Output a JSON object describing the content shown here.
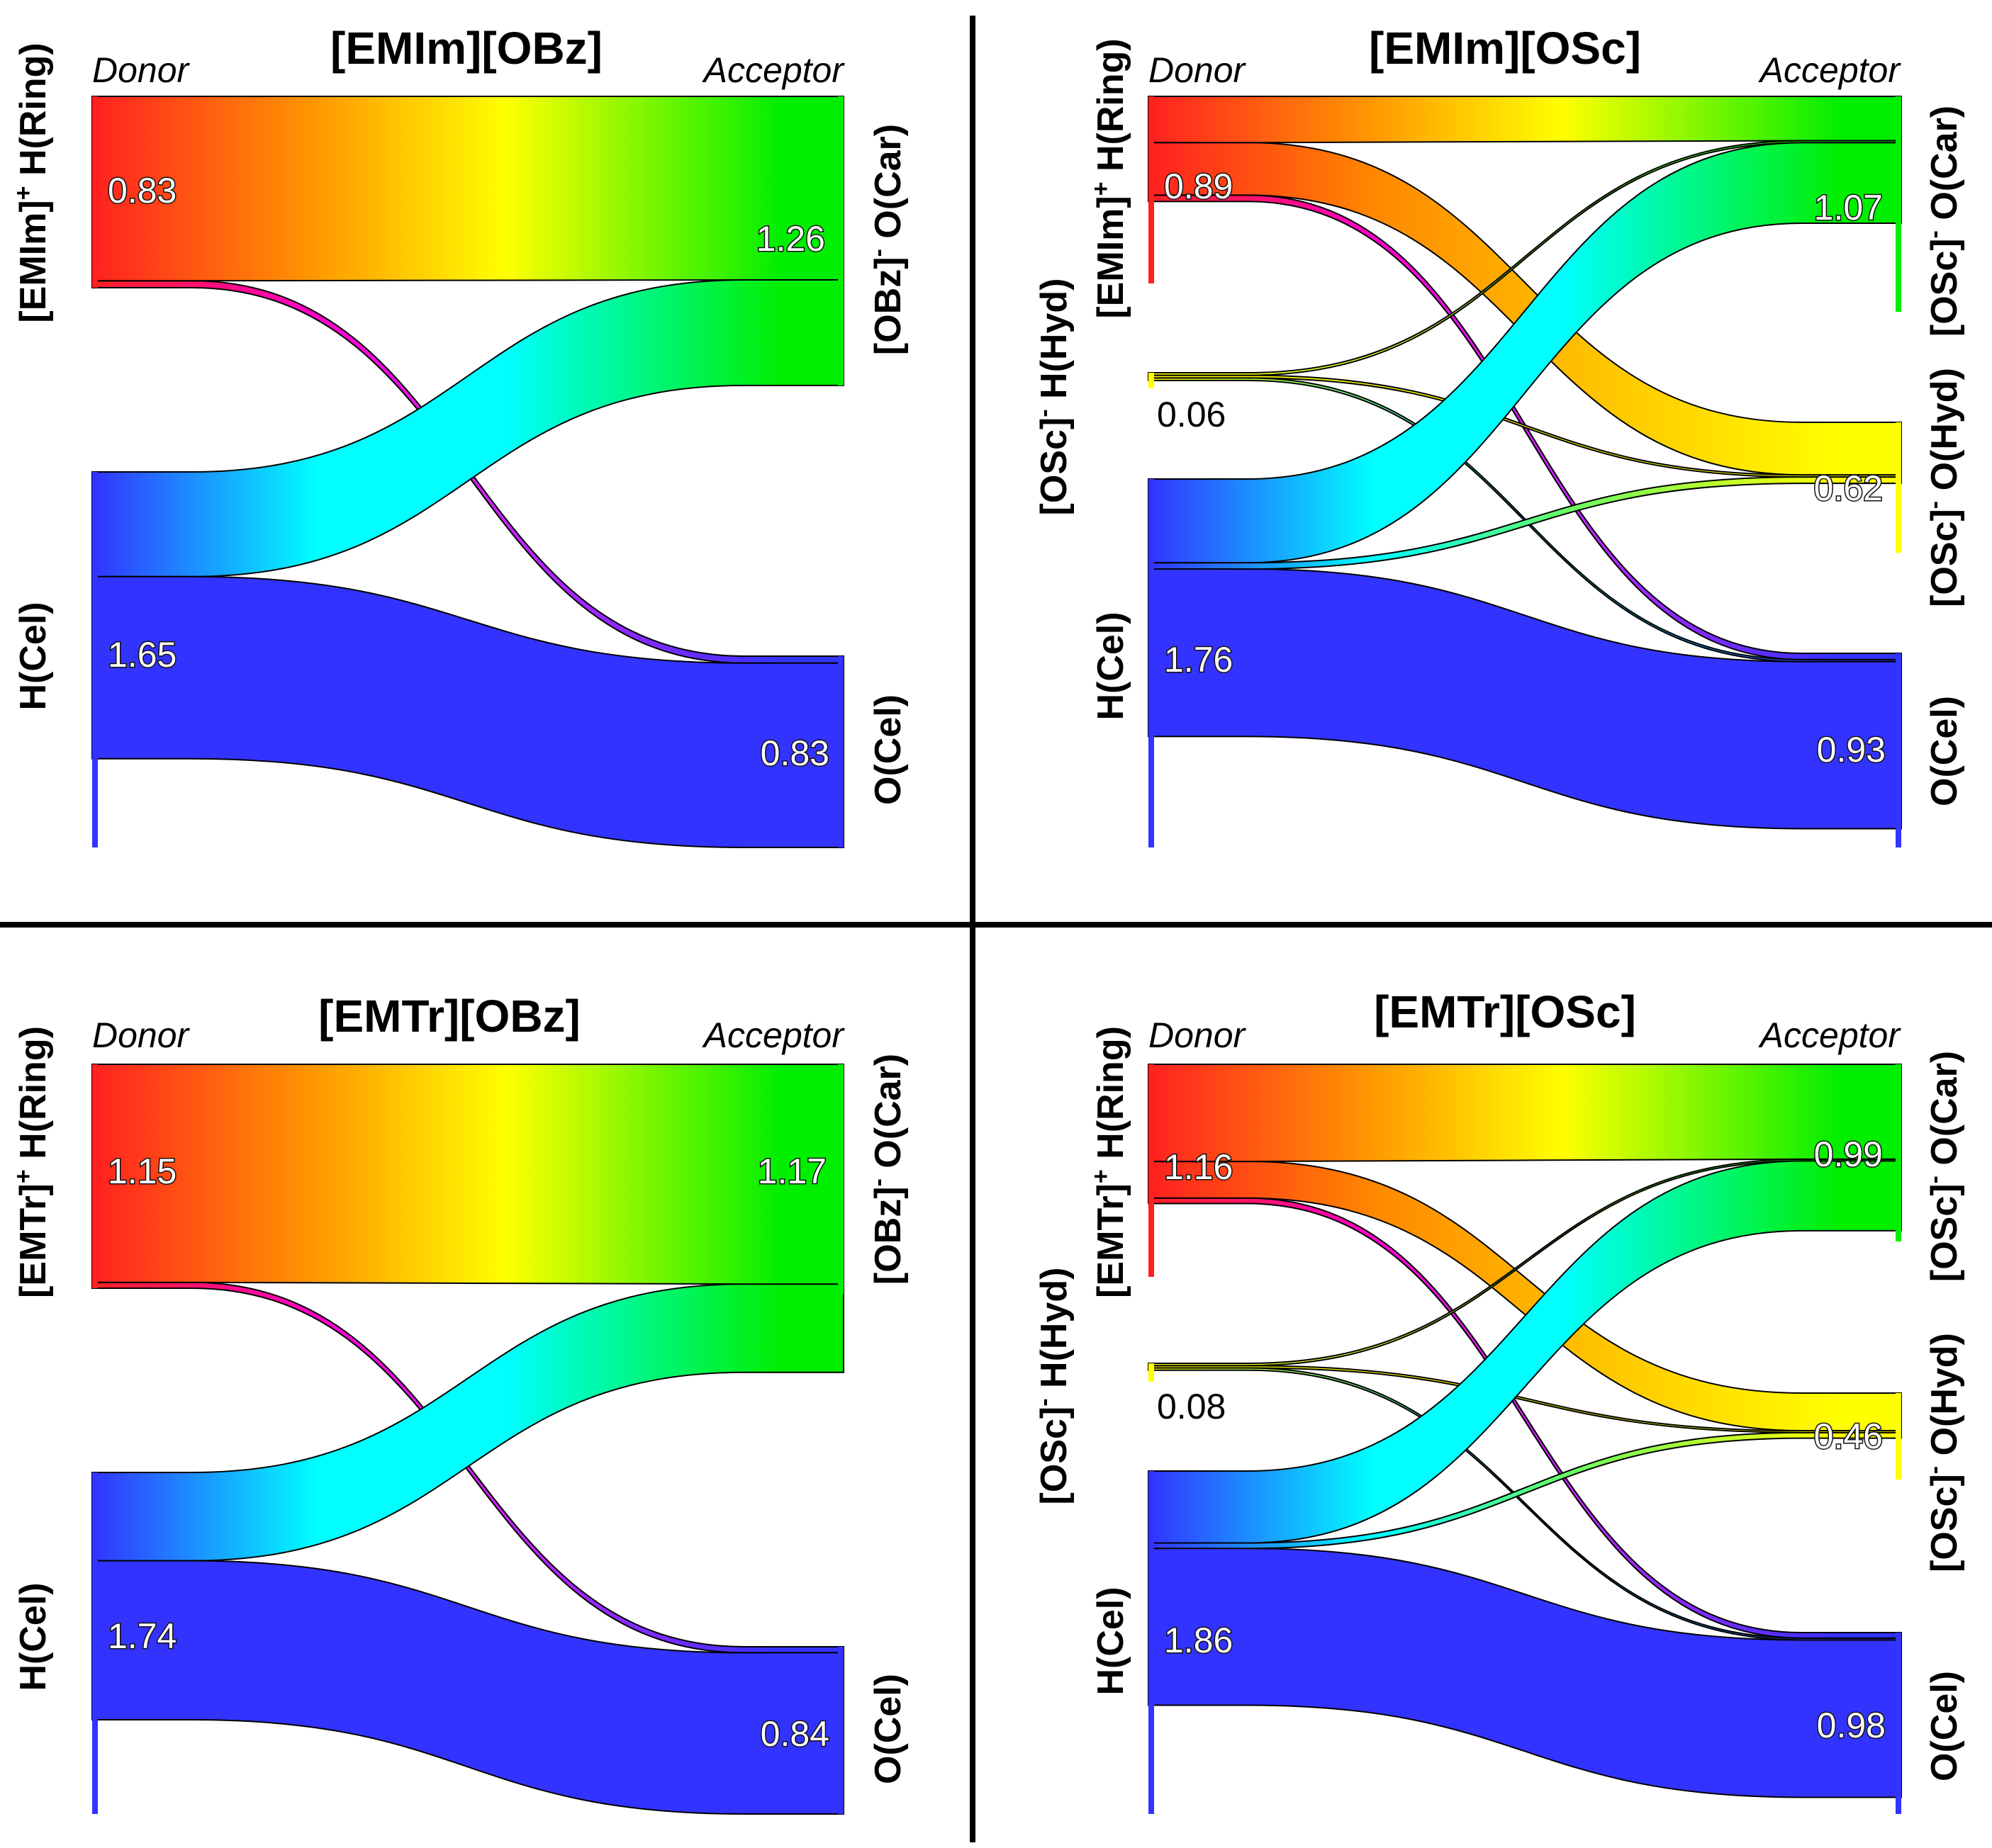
{
  "figure_kind": "sankey-hydrogen-bond-flows",
  "role_labels": {
    "donor": "Donor",
    "acceptor": "Acceptor"
  },
  "colors": {
    "ring_h": "#ff2020",
    "o_car": "#00ee00",
    "hyd_h": "#ffff00",
    "o_hyd": "#ffff00",
    "h_cel": "#3333ff",
    "o_cel": "#3333ff",
    "cyan": "#00ffff",
    "magenta": "#ff00cc",
    "orange": "#ff8800",
    "divider": "#000000"
  },
  "chart_data": [
    {
      "type": "sankey",
      "title": "[EMIm][OBz]",
      "donors": [
        {
          "label_main": "[EMIm]",
          "label_sup": "+",
          "label_rest": " H(Ring)",
          "value": 0.83,
          "color": "#ff2020"
        },
        {
          "label_main": "H(Cel)",
          "label_sup": "",
          "label_rest": "",
          "value": 1.65,
          "color": "#3333ff"
        }
      ],
      "acceptors": [
        {
          "label_main": "[OBz]",
          "label_sup": "-",
          "label_rest": " O(Car)",
          "value": 1.26,
          "color": "#00ee00"
        },
        {
          "label_main": "O(Cel)",
          "label_sup": "",
          "label_rest": "",
          "value": 0.83,
          "color": "#3333ff"
        }
      ],
      "links": [
        {
          "from": 0,
          "to": 0,
          "value": 0.8
        },
        {
          "from": 0,
          "to": 1,
          "value": 0.03
        },
        {
          "from": 1,
          "to": 0,
          "value": 0.46
        },
        {
          "from": 1,
          "to": 1,
          "value": 0.8
        }
      ]
    },
    {
      "type": "sankey",
      "title": "[EMIm][OSc]",
      "donors": [
        {
          "label_main": "[EMIm]",
          "label_sup": "+",
          "label_rest": " H(Ring)",
          "value": 0.89,
          "color": "#ff2020"
        },
        {
          "label_main": "[OSc]",
          "label_sup": "-",
          "label_rest": " H(Hyd)",
          "value": 0.06,
          "color": "#ffff00"
        },
        {
          "label_main": "H(Cel)",
          "label_sup": "",
          "label_rest": "",
          "value": 1.76,
          "color": "#3333ff"
        }
      ],
      "acceptors": [
        {
          "label_main": "[OSc]",
          "label_sup": "-",
          "label_rest": " O(Car)",
          "value": 1.07,
          "color": "#00ee00"
        },
        {
          "label_main": "[OSc]",
          "label_sup": "-",
          "label_rest": " O(Hyd)",
          "value": 0.62,
          "color": "#ffff00"
        },
        {
          "label_main": "O(Cel)",
          "label_sup": "",
          "label_rest": "",
          "value": 0.93,
          "color": "#3333ff"
        }
      ],
      "links": [
        {
          "from": 0,
          "to": 0,
          "value": 0.22
        },
        {
          "from": 0,
          "to": 1,
          "value": 0.25
        },
        {
          "from": 0,
          "to": 2,
          "value": 0.03
        },
        {
          "from": 1,
          "to": 0,
          "value": 0.01
        },
        {
          "from": 1,
          "to": 1,
          "value": 0.01
        },
        {
          "from": 1,
          "to": 2,
          "value": 0.01
        },
        {
          "from": 2,
          "to": 0,
          "value": 0.4
        },
        {
          "from": 2,
          "to": 1,
          "value": 0.03
        },
        {
          "from": 2,
          "to": 2,
          "value": 0.8
        }
      ]
    },
    {
      "type": "sankey",
      "title": "[EMTr][OBz]",
      "donors": [
        {
          "label_main": "[EMTr]",
          "label_sup": "+",
          "label_rest": " H(Ring)",
          "value": 1.15,
          "color": "#ff2020"
        },
        {
          "label_main": "H(Cel)",
          "label_sup": "",
          "label_rest": "",
          "value": 1.74,
          "color": "#3333ff"
        }
      ],
      "acceptors": [
        {
          "label_main": "[OBz]",
          "label_sup": "-",
          "label_rest": " O(Car)",
          "value": 1.17,
          "color": "#00ee00"
        },
        {
          "label_main": "O(Cel)",
          "label_sup": "",
          "label_rest": "",
          "value": 0.84,
          "color": "#3333ff"
        }
      ],
      "links": [
        {
          "from": 0,
          "to": 0,
          "value": 1.12
        },
        {
          "from": 0,
          "to": 1,
          "value": 0.03
        },
        {
          "from": 1,
          "to": 0,
          "value": 0.45
        },
        {
          "from": 1,
          "to": 1,
          "value": 0.81
        }
      ]
    },
    {
      "type": "sankey",
      "title": "[EMTr][OSc]",
      "donors": [
        {
          "label_main": "[EMTr]",
          "label_sup": "+",
          "label_rest": " H(Ring)",
          "value": 1.16,
          "color": "#ff2020"
        },
        {
          "label_main": "[OSc]",
          "label_sup": "-",
          "label_rest": " H(Hyd)",
          "value": 0.08,
          "color": "#ffff00"
        },
        {
          "label_main": "H(Cel)",
          "label_sup": "",
          "label_rest": "",
          "value": 1.86,
          "color": "#3333ff"
        }
      ],
      "acceptors": [
        {
          "label_main": "[OSc]",
          "label_sup": "-",
          "label_rest": " O(Car)",
          "value": 0.99,
          "color": "#00ee00"
        },
        {
          "label_main": "[OSc]",
          "label_sup": "-",
          "label_rest": " O(Hyd)",
          "value": 0.46,
          "color": "#ffff00"
        },
        {
          "label_main": "O(Cel)",
          "label_sup": "",
          "label_rest": "",
          "value": 0.98,
          "color": "#3333ff"
        }
      ],
      "links": [
        {
          "from": 0,
          "to": 0,
          "value": 0.53
        },
        {
          "from": 0,
          "to": 1,
          "value": 0.2
        },
        {
          "from": 0,
          "to": 2,
          "value": 0.03
        },
        {
          "from": 1,
          "to": 0,
          "value": 0.01
        },
        {
          "from": 1,
          "to": 1,
          "value": 0.01
        },
        {
          "from": 1,
          "to": 2,
          "value": 0.01
        },
        {
          "from": 2,
          "to": 0,
          "value": 0.39
        },
        {
          "from": 2,
          "to": 1,
          "value": 0.03
        },
        {
          "from": 2,
          "to": 2,
          "value": 0.85
        }
      ]
    }
  ]
}
